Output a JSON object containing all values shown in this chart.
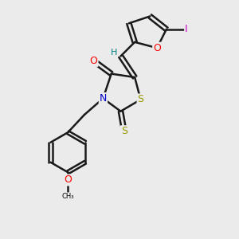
{
  "bg_color": "#ebebeb",
  "bond_color": "#1a1a1a",
  "bond_width": 1.8,
  "atom_colors": {
    "O": "#ff0000",
    "N": "#0000cc",
    "S": "#999900",
    "I": "#cc00cc",
    "H": "#008080"
  },
  "font_size": 8,
  "fig_size": [
    3.0,
    3.0
  ],
  "dpi": 100
}
